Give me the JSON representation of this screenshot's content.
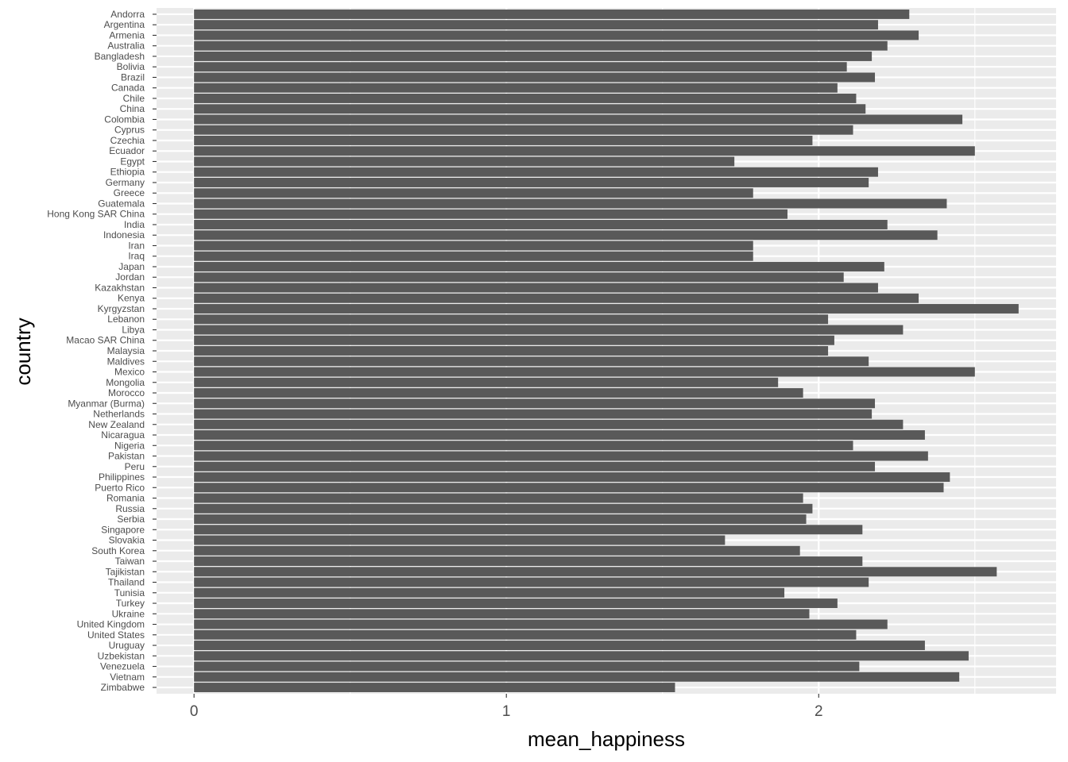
{
  "chart_data": {
    "type": "bar",
    "orientation": "horizontal",
    "xlabel": "mean_happiness",
    "ylabel": "country",
    "xlim": [
      -0.12,
      2.76
    ],
    "x_ticks": [
      0,
      1,
      2
    ],
    "grid": true,
    "bar_color": "#595959",
    "panel_color": "#ebebeb",
    "categories": [
      "Zimbabwe",
      "Vietnam",
      "Venezuela",
      "Uzbekistan",
      "Uruguay",
      "United States",
      "United Kingdom",
      "Ukraine",
      "Turkey",
      "Tunisia",
      "Thailand",
      "Tajikistan",
      "Taiwan",
      "South Korea",
      "Slovakia",
      "Singapore",
      "Serbia",
      "Russia",
      "Romania",
      "Puerto Rico",
      "Philippines",
      "Peru",
      "Pakistan",
      "Nigeria",
      "Nicaragua",
      "New Zealand",
      "Netherlands",
      "Myanmar (Burma)",
      "Morocco",
      "Mongolia",
      "Mexico",
      "Maldives",
      "Malaysia",
      "Macao SAR China",
      "Libya",
      "Lebanon",
      "Kyrgyzstan",
      "Kenya",
      "Kazakhstan",
      "Jordan",
      "Japan",
      "Iraq",
      "Iran",
      "Indonesia",
      "India",
      "Hong Kong SAR China",
      "Guatemala",
      "Greece",
      "Germany",
      "Ethiopia",
      "Egypt",
      "Ecuador",
      "Czechia",
      "Cyprus",
      "Colombia",
      "China",
      "Chile",
      "Canada",
      "Brazil",
      "Bolivia",
      "Bangladesh",
      "Australia",
      "Armenia",
      "Argentina",
      "Andorra"
    ],
    "values": [
      1.54,
      2.45,
      2.13,
      2.48,
      2.34,
      2.12,
      2.22,
      1.97,
      2.06,
      1.89,
      2.16,
      2.57,
      2.14,
      1.94,
      1.7,
      2.14,
      1.96,
      1.98,
      1.95,
      2.4,
      2.42,
      2.18,
      2.35,
      2.11,
      2.34,
      2.27,
      2.17,
      2.18,
      1.95,
      1.87,
      2.5,
      2.16,
      2.03,
      2.05,
      2.27,
      2.03,
      2.64,
      2.32,
      2.19,
      2.08,
      2.21,
      1.79,
      1.79,
      2.38,
      2.22,
      1.9,
      2.41,
      1.79,
      2.16,
      2.19,
      1.73,
      2.5,
      1.98,
      2.11,
      2.46,
      2.15,
      2.12,
      2.06,
      2.18,
      2.09,
      2.17,
      2.22,
      2.32,
      2.19,
      2.29
    ]
  }
}
